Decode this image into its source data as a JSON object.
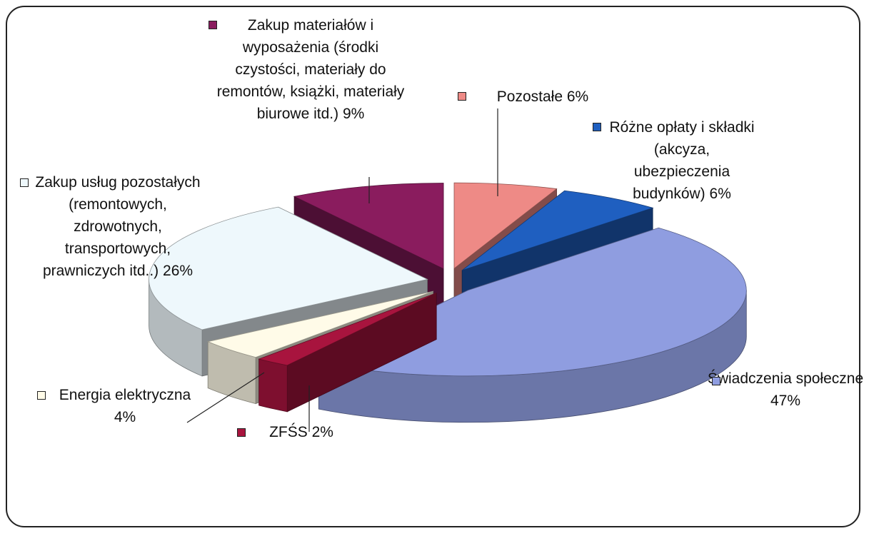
{
  "chart_data": {
    "type": "pie",
    "categories": [
      "Pozostałe",
      "Różne opłaty i składki (akcyza, ubezpieczenia budynków)",
      "Świadczenia społeczne",
      "ZFŚS",
      "Energia elektryczna",
      "Zakup usług pozostałych (remontowych, zdrowotnych, transportowych, prawniczych itd..)",
      "Zakup materiałów i wyposażenia (środki czystości, materiały do remontów, książki, materiały biurowe itd.)"
    ],
    "values": [
      6,
      6,
      47,
      2,
      4,
      26,
      9
    ],
    "value_labels": [
      "6%",
      "6%",
      "47%",
      "2%",
      "4%",
      "26%",
      "9%"
    ],
    "colors": [
      "#ee8a86",
      "#1f5fc0",
      "#8f9de0",
      "#a8143e",
      "#fffbe8",
      "#eef8fc",
      "#8a1c5e"
    ]
  }
}
